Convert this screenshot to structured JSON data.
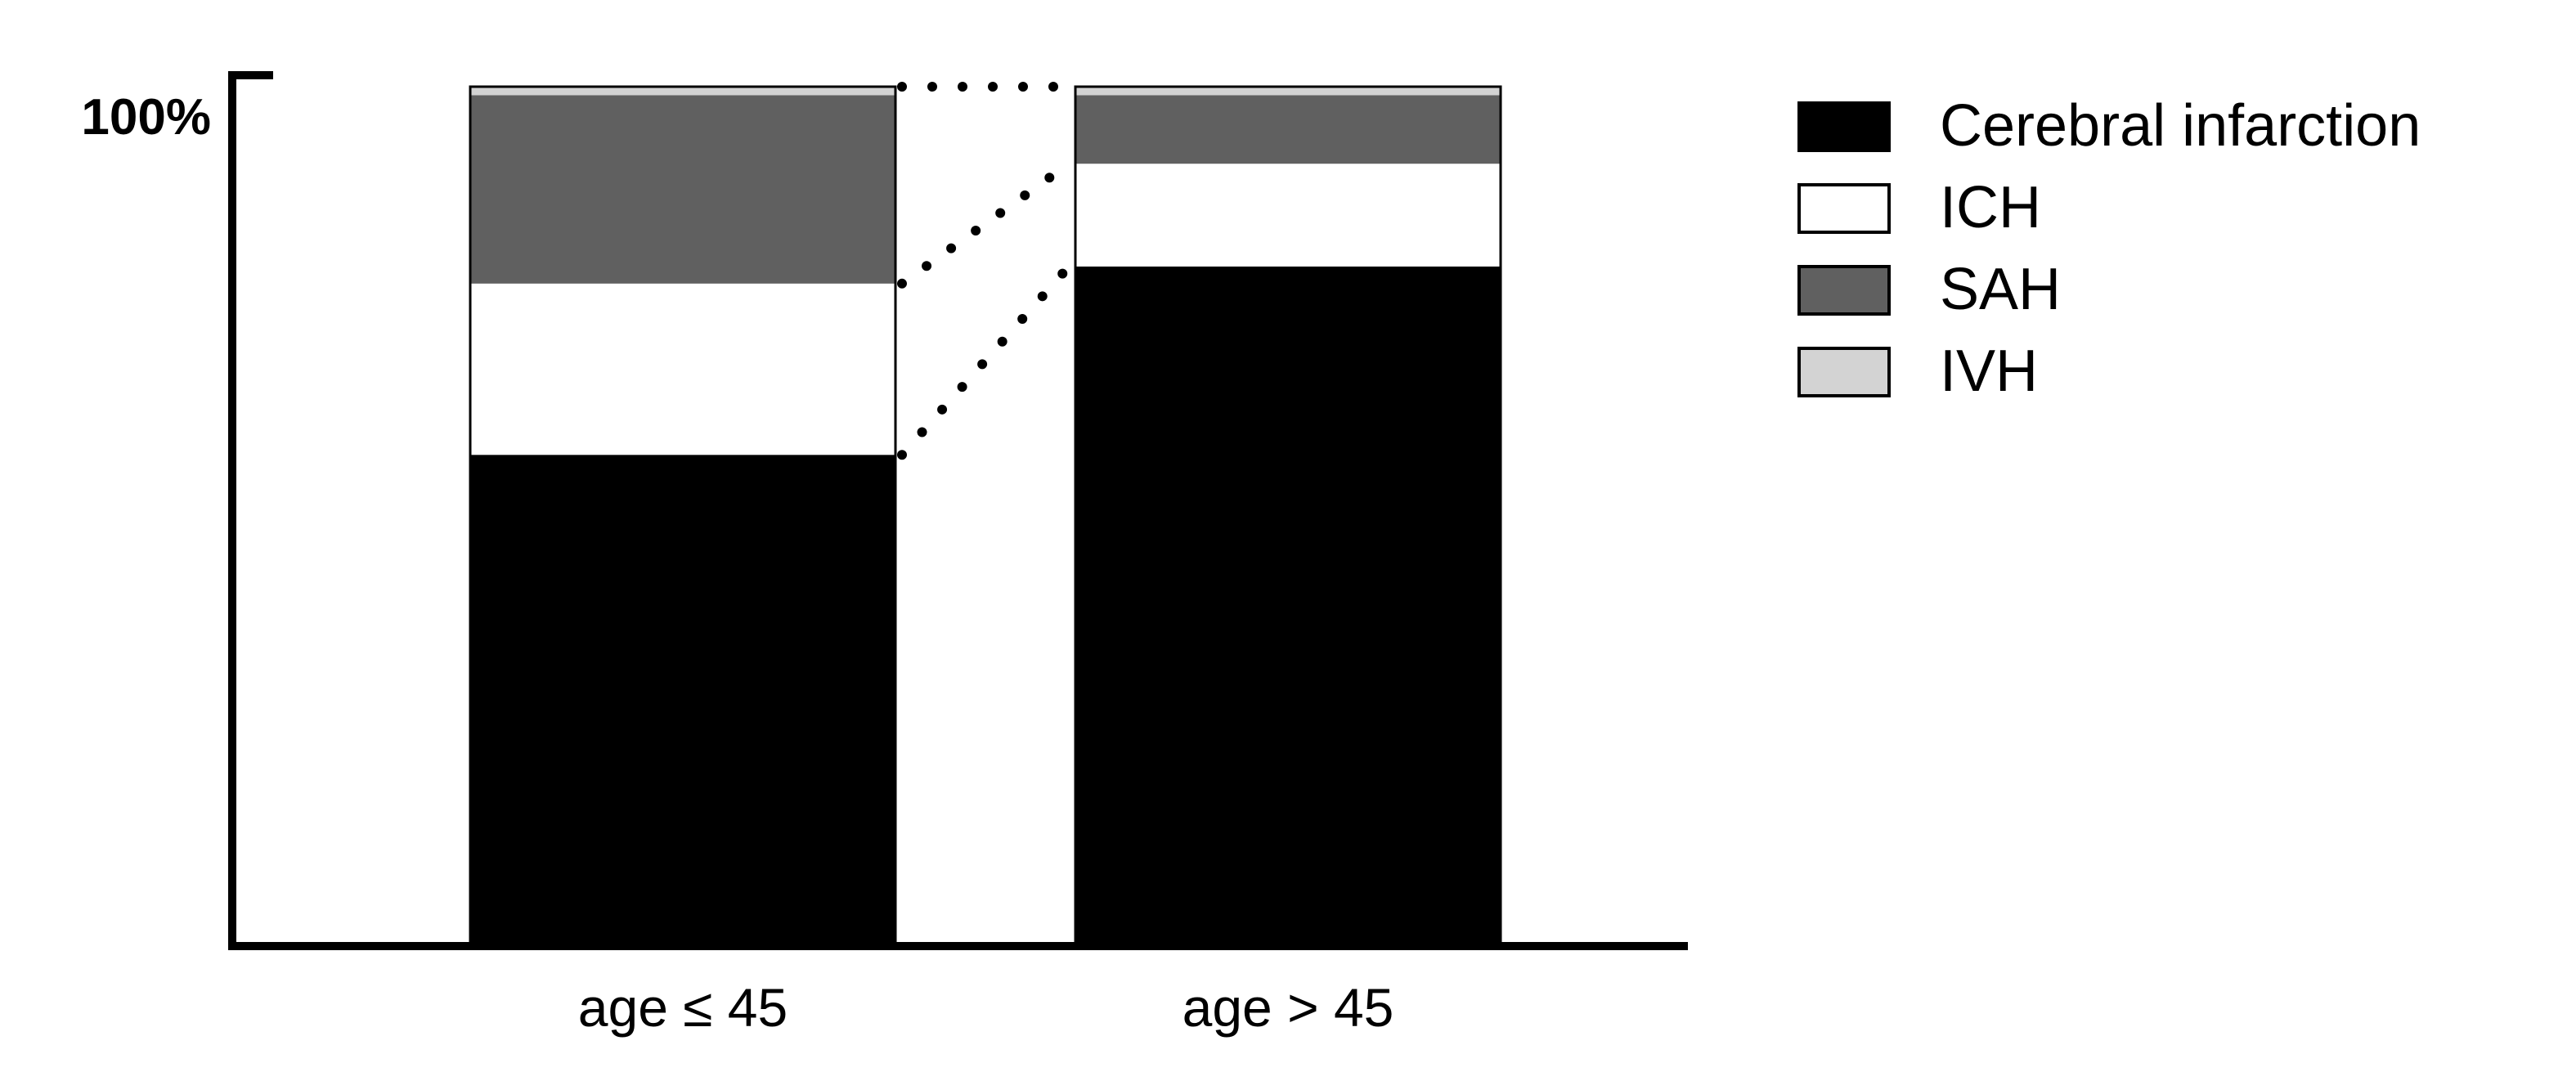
{
  "chart_data": {
    "type": "bar",
    "stacked": true,
    "normalized": true,
    "categories": [
      "age ≤ 45",
      "age > 45"
    ],
    "series": [
      {
        "name": "Cerebral infarction",
        "color": "#000000",
        "values": [
          57,
          79
        ]
      },
      {
        "name": "ICH",
        "color": "#ffffff",
        "values": [
          20,
          12
        ]
      },
      {
        "name": "SAH",
        "color": "#606060",
        "values": [
          22,
          8
        ]
      },
      {
        "name": "IVH",
        "color": "#d3d3d3",
        "values": [
          1,
          1
        ]
      }
    ],
    "ylim": [
      0,
      100
    ],
    "ytick_label": "100%",
    "grid": false,
    "legend_position": "top-right",
    "connector_style": "dotted"
  }
}
